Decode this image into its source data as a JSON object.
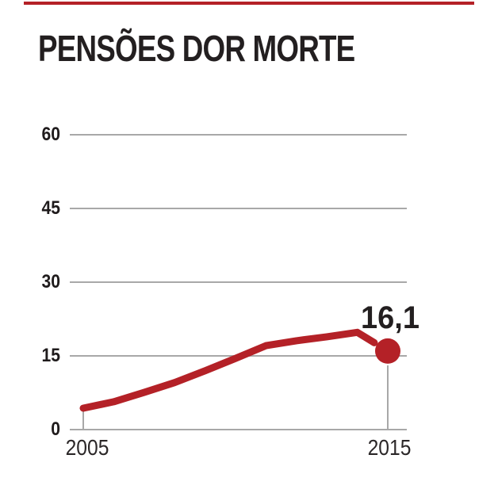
{
  "chart_data": {
    "type": "line",
    "title": "PENSÕES DOR MORTE",
    "x": [
      2005,
      2006,
      2007,
      2008,
      2009,
      2010,
      2011,
      2012,
      2013,
      2014,
      2015
    ],
    "values": [
      4.5,
      5.8,
      7.7,
      9.7,
      12.1,
      14.6,
      17.2,
      18.2,
      19.0,
      19.9,
      16.1
    ],
    "xtick_labels": [
      "2005",
      "2015"
    ],
    "ytick_labels": [
      "60",
      "45",
      "30",
      "15",
      "0"
    ],
    "yticks": [
      60,
      45,
      30,
      15,
      0
    ],
    "ylim": [
      0,
      67
    ],
    "xlabel": "",
    "ylabel": "",
    "grid": "horizontal",
    "legend": "none",
    "annotation": "16,1",
    "annotation_point": {
      "x": 2015,
      "y": 16.1
    },
    "line_color": "#b42127",
    "marker_color": "#b42127",
    "accent_rule_color": "#b42127",
    "grid_color": "#a8a8a8",
    "text_color": "#231f20"
  }
}
